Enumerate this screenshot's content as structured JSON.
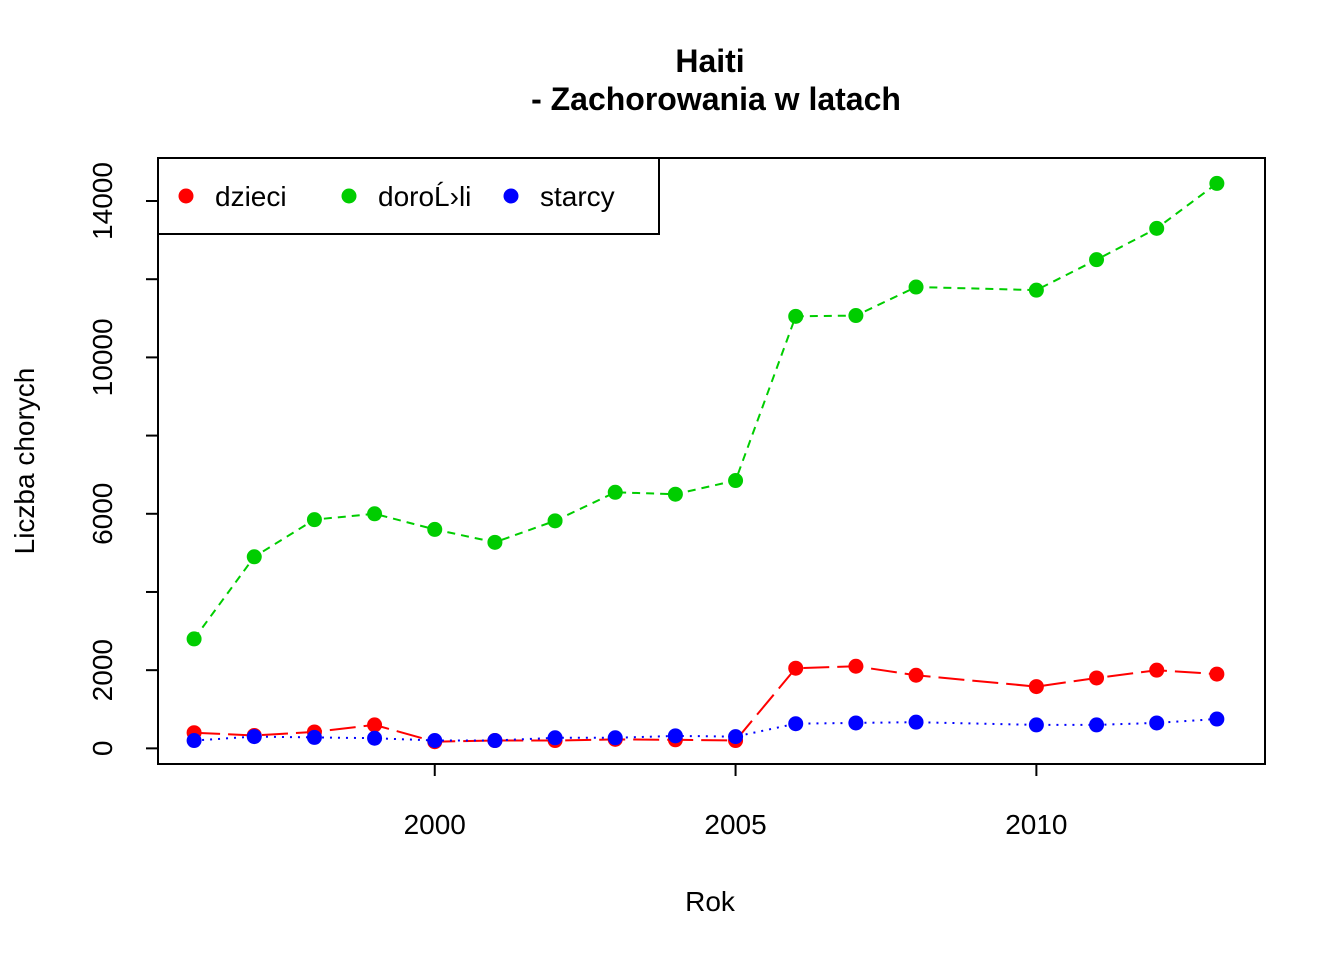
{
  "chart_data": {
    "type": "line",
    "title": "Haiti",
    "subtitle": "- Zachorowania w latach",
    "xlabel": "Rok",
    "ylabel": "Liczba chorych",
    "xlim": [
      1995.4,
      2013.8
    ],
    "ylim": [
      -400,
      15100
    ],
    "xticks": [
      2000,
      2005,
      2010
    ],
    "yticks": [
      0,
      2000,
      6000,
      10000,
      14000
    ],
    "yminor_ticks": [
      4000,
      8000,
      12000
    ],
    "x": [
      1996,
      1997,
      1998,
      1999,
      2000,
      2001,
      2002,
      2003,
      2004,
      2005,
      2006,
      2007,
      2008,
      2010,
      2011,
      2012,
      2013
    ],
    "legend_position": "top-left",
    "grid": false,
    "series": [
      {
        "name": "dzieci",
        "color": "#ff0000",
        "line_style": "longdash",
        "values": [
          400,
          330,
          420,
          600,
          170,
          200,
          200,
          230,
          220,
          200,
          2050,
          2100,
          1870,
          1580,
          1800,
          2000,
          1900
        ]
      },
      {
        "name": "doroĹ›li",
        "color": "#00cd00",
        "line_style": "dashed",
        "values": [
          2800,
          4900,
          5850,
          6000,
          5600,
          5270,
          5820,
          6550,
          6500,
          6850,
          11050,
          11070,
          11800,
          11720,
          12500,
          13300,
          14450
        ]
      },
      {
        "name": "starcy",
        "color": "#0000ff",
        "line_style": "dotted",
        "values": [
          200,
          300,
          280,
          260,
          200,
          200,
          270,
          270,
          320,
          300,
          630,
          650,
          670,
          600,
          600,
          650,
          750
        ]
      }
    ]
  }
}
